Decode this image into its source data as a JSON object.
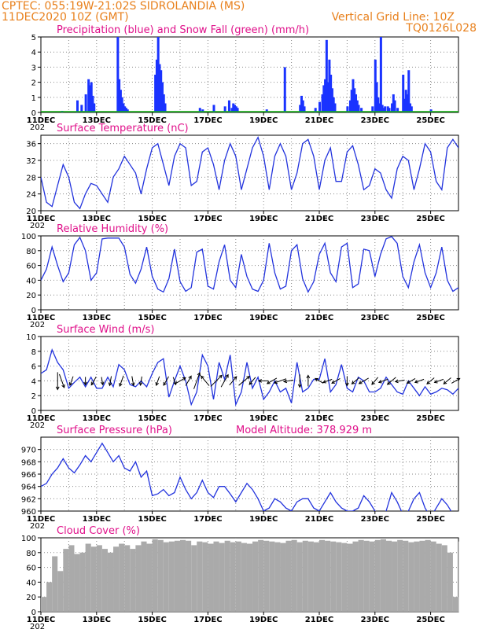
{
  "header": {
    "left_line1": "CPTEC:   055:19W-21:02S  SIDROLANDIA (MS)",
    "left_line2": "11DEC2020 10Z (GMT)",
    "right_line1": "Vertical Grid Line: 10Z",
    "right_line2": "TQ0126L028"
  },
  "x_axis": {
    "ticks": [
      "11DEC",
      "13DEC",
      "15DEC",
      "17DEC",
      "19DEC",
      "21DEC",
      "23DEC",
      "25DEC"
    ],
    "tick_days": [
      0,
      2,
      4,
      6,
      8,
      10,
      12,
      14
    ],
    "range_days": [
      0,
      15
    ],
    "year_stub": "202"
  },
  "colors": {
    "precip": "#1a33ff",
    "snow": "#10b010",
    "line": "#2233dd",
    "cloud": "#aaaaaa",
    "title": "#e0108a",
    "header": "#e8801c",
    "grid": "#888888"
  },
  "chart_data": [
    {
      "id": "precip",
      "type": "bar",
      "title": "Precipitation (blue) and Snow Fall (green) (mm/h)",
      "ylim": [
        0,
        5
      ],
      "yticks": [
        "0",
        "1",
        "2",
        "3",
        "4",
        "5"
      ],
      "grid": true,
      "series": [
        {
          "name": "Precipitation",
          "x": [
            0.75,
            1.3,
            1.45,
            1.6,
            1.7,
            1.75,
            1.8,
            1.85,
            1.9,
            2.75,
            2.8,
            2.85,
            2.9,
            2.95,
            3.0,
            3.05,
            3.1,
            4.1,
            4.15,
            4.2,
            4.25,
            4.3,
            4.35,
            4.4,
            4.45,
            5.7,
            5.8,
            6.2,
            6.6,
            6.75,
            6.85,
            6.9,
            6.95,
            7.0,
            7.05,
            8.1,
            8.75,
            9.3,
            9.35,
            9.4,
            9.45,
            9.85,
            10.0,
            10.1,
            10.15,
            10.2,
            10.25,
            10.3,
            10.35,
            10.4,
            10.45,
            10.5,
            10.55,
            11.0,
            11.1,
            11.15,
            11.2,
            11.25,
            11.3,
            11.35,
            11.4,
            11.5,
            11.9,
            12.0,
            12.05,
            12.1,
            12.15,
            12.2,
            12.25,
            12.3,
            12.35,
            12.45,
            12.5,
            12.6,
            12.65,
            12.7,
            12.8,
            13.0,
            13.05,
            13.1,
            13.15,
            13.2,
            13.25,
            13.3,
            14.0
          ],
          "values": [
            0.1,
            0.8,
            0.5,
            1.2,
            2.2,
            1.8,
            2.0,
            1.1,
            0.6,
            5.0,
            2.2,
            1.5,
            1.0,
            0.6,
            0.4,
            0.3,
            0.2,
            2.5,
            3.5,
            5.0,
            3.2,
            2.8,
            2.0,
            1.2,
            0.6,
            0.3,
            0.2,
            0.5,
            0.4,
            0.8,
            0.3,
            0.6,
            0.5,
            0.4,
            0.3,
            0.2,
            3.0,
            0.5,
            1.1,
            0.8,
            0.4,
            0.3,
            0.7,
            1.2,
            1.8,
            2.2,
            4.8,
            2.0,
            3.5,
            2.5,
            1.6,
            1.0,
            0.6,
            0.4,
            0.8,
            1.5,
            2.2,
            1.6,
            1.2,
            0.8,
            0.5,
            0.3,
            0.4,
            3.5,
            2.0,
            1.0,
            0.6,
            5.0,
            0.5,
            0.3,
            0.4,
            0.4,
            0.3,
            0.6,
            1.2,
            0.8,
            0.3,
            2.5,
            0.9,
            1.5,
            1.2,
            2.8,
            0.6,
            0.4,
            0.2
          ]
        },
        {
          "name": "Snow Fall",
          "x": [
            0,
            15
          ],
          "values": [
            0,
            0
          ]
        }
      ]
    },
    {
      "id": "temperature",
      "type": "line",
      "title": "Surface Temperature (nC)",
      "ylim": [
        20,
        38
      ],
      "yticks": [
        "20",
        "24",
        "28",
        "32",
        "36"
      ],
      "ytick_values": [
        20,
        24,
        28,
        32,
        36
      ],
      "grid": true,
      "x": [
        0,
        0.2,
        0.4,
        0.6,
        0.8,
        1.0,
        1.2,
        1.4,
        1.6,
        1.8,
        2.0,
        2.2,
        2.4,
        2.6,
        2.8,
        3.0,
        3.2,
        3.4,
        3.6,
        3.8,
        4.0,
        4.2,
        4.4,
        4.6,
        4.8,
        5.0,
        5.2,
        5.4,
        5.6,
        5.8,
        6.0,
        6.2,
        6.4,
        6.6,
        6.8,
        7.0,
        7.2,
        7.4,
        7.6,
        7.8,
        8.0,
        8.2,
        8.4,
        8.6,
        8.8,
        9.0,
        9.2,
        9.4,
        9.6,
        9.8,
        10.0,
        10.2,
        10.4,
        10.6,
        10.8,
        11.0,
        11.2,
        11.4,
        11.6,
        11.8,
        12.0,
        12.2,
        12.4,
        12.6,
        12.8,
        13.0,
        13.2,
        13.4,
        13.6,
        13.8,
        14.0,
        14.2,
        14.4,
        14.6,
        14.8,
        15.0
      ],
      "values": [
        28,
        22,
        21,
        26,
        31,
        28,
        22,
        20.5,
        24,
        26.5,
        26,
        24,
        22,
        28,
        30,
        33,
        31,
        29,
        24,
        30,
        35,
        36,
        31,
        26,
        33,
        36,
        35,
        26,
        27,
        34,
        35,
        31,
        25,
        32,
        36,
        33,
        25,
        30,
        35,
        37.5,
        33,
        25,
        33,
        36,
        33,
        25,
        29,
        36,
        37,
        33,
        25,
        32,
        35,
        27,
        27,
        34,
        35.5,
        31,
        25,
        26,
        30,
        29,
        25,
        23,
        30,
        33,
        32,
        25,
        30,
        36,
        34,
        27,
        25,
        35,
        37,
        35
      ]
    },
    {
      "id": "humidity",
      "type": "line",
      "title": "Relative Humidity (%)",
      "ylim": [
        0,
        100
      ],
      "yticks": [
        "0",
        "20",
        "40",
        "60",
        "80",
        "100"
      ],
      "ytick_values": [
        0,
        20,
        40,
        60,
        80,
        100
      ],
      "grid": true,
      "x": [
        0,
        0.2,
        0.4,
        0.6,
        0.8,
        1.0,
        1.2,
        1.4,
        1.6,
        1.8,
        2.0,
        2.2,
        2.4,
        2.6,
        2.8,
        3.0,
        3.2,
        3.4,
        3.6,
        3.8,
        4.0,
        4.2,
        4.4,
        4.6,
        4.8,
        5.0,
        5.2,
        5.4,
        5.6,
        5.8,
        6.0,
        6.2,
        6.4,
        6.6,
        6.8,
        7.0,
        7.2,
        7.4,
        7.6,
        7.8,
        8.0,
        8.2,
        8.4,
        8.6,
        8.8,
        9.0,
        9.2,
        9.4,
        9.6,
        9.8,
        10.0,
        10.2,
        10.4,
        10.6,
        10.8,
        11.0,
        11.2,
        11.4,
        11.6,
        11.8,
        12.0,
        12.2,
        12.4,
        12.6,
        12.8,
        13.0,
        13.2,
        13.4,
        13.6,
        13.8,
        14.0,
        14.2,
        14.4,
        14.6,
        14.8,
        15.0
      ],
      "values": [
        40,
        55,
        85,
        60,
        38,
        50,
        88,
        98,
        80,
        40,
        50,
        96,
        97,
        97,
        97,
        85,
        48,
        36,
        55,
        85,
        45,
        28,
        24,
        42,
        82,
        38,
        25,
        30,
        78,
        82,
        32,
        28,
        65,
        88,
        40,
        30,
        75,
        45,
        28,
        25,
        40,
        90,
        50,
        28,
        32,
        80,
        88,
        42,
        24,
        38,
        75,
        90,
        50,
        38,
        85,
        90,
        30,
        35,
        82,
        80,
        45,
        75,
        96,
        99,
        90,
        45,
        30,
        65,
        88,
        50,
        30,
        50,
        85,
        40,
        25,
        30
      ]
    },
    {
      "id": "wind",
      "type": "line",
      "title": "Surface Wind (m/s)",
      "ylim": [
        0,
        10
      ],
      "yticks": [
        "0",
        "2",
        "4",
        "6",
        "8",
        "10"
      ],
      "ytick_values": [
        0,
        2,
        4,
        6,
        8,
        10
      ],
      "grid": true,
      "x": [
        0,
        0.2,
        0.4,
        0.6,
        0.8,
        1.0,
        1.2,
        1.4,
        1.6,
        1.8,
        2.0,
        2.2,
        2.4,
        2.6,
        2.8,
        3.0,
        3.2,
        3.4,
        3.6,
        3.8,
        4.0,
        4.2,
        4.4,
        4.6,
        4.8,
        5.0,
        5.2,
        5.4,
        5.6,
        5.8,
        6.0,
        6.2,
        6.4,
        6.6,
        6.8,
        7.0,
        7.2,
        7.4,
        7.6,
        7.8,
        8.0,
        8.2,
        8.4,
        8.6,
        8.8,
        9.0,
        9.2,
        9.4,
        9.6,
        9.8,
        10.0,
        10.2,
        10.4,
        10.6,
        10.8,
        11.0,
        11.2,
        11.4,
        11.6,
        11.8,
        12.0,
        12.2,
        12.4,
        12.6,
        12.8,
        13.0,
        13.2,
        13.4,
        13.6,
        13.8,
        14.0,
        14.2,
        14.4,
        14.6,
        14.8,
        15.0
      ],
      "values": [
        5,
        5.5,
        8.2,
        6.5,
        5.5,
        3.0,
        3.8,
        4.5,
        3.2,
        4.5,
        3.0,
        3.0,
        4.5,
        3.2,
        6.2,
        5.5,
        3.5,
        3.2,
        4.0,
        3.2,
        5.0,
        6.5,
        7.0,
        1.8,
        4.0,
        6.0,
        4.0,
        0.8,
        2.5,
        7.5,
        6.0,
        1.5,
        6.5,
        4.2,
        7.5,
        0.8,
        2.5,
        6.5,
        3.0,
        4.5,
        1.5,
        2.5,
        4.0,
        2.5,
        3.0,
        1.0,
        6.5,
        2.5,
        3.0,
        4.2,
        4.2,
        7.0,
        2.5,
        3.5,
        6.2,
        3.0,
        2.5,
        4.5,
        4.0,
        2.5,
        2.5,
        3.0,
        4.5,
        3.5,
        2.5,
        2.2,
        4.0,
        3.0,
        2.0,
        3.2,
        2.2,
        2.5,
        3.0,
        2.8,
        2.2,
        3.0
      ]
    },
    {
      "id": "pressure",
      "type": "line",
      "title": "Surface Pressure (hPa)",
      "annotation": "Model Altitude: 378.929  m",
      "ylim": [
        960,
        972
      ],
      "yticks": [
        "960",
        "962",
        "964",
        "966",
        "968",
        "970"
      ],
      "ytick_values": [
        960,
        962,
        964,
        966,
        968,
        970
      ],
      "grid": true,
      "x": [
        0,
        0.2,
        0.4,
        0.6,
        0.8,
        1.0,
        1.2,
        1.4,
        1.6,
        1.8,
        2.0,
        2.2,
        2.4,
        2.6,
        2.8,
        3.0,
        3.2,
        3.4,
        3.6,
        3.8,
        4.0,
        4.2,
        4.4,
        4.6,
        4.8,
        5.0,
        5.2,
        5.4,
        5.6,
        5.8,
        6.0,
        6.2,
        6.4,
        6.6,
        6.8,
        7.0,
        7.2,
        7.4,
        7.6,
        7.8,
        8.0,
        8.2,
        8.4,
        8.6,
        8.8,
        9.0,
        9.2,
        9.4,
        9.6,
        9.8,
        10.0,
        10.2,
        10.4,
        10.6,
        10.8,
        11.0,
        11.2,
        11.4,
        11.6,
        11.8,
        12.0,
        12.2,
        12.4,
        12.6,
        12.8,
        13.0,
        13.2,
        13.4,
        13.6,
        13.8,
        14.0,
        14.2,
        14.4,
        14.6,
        14.8,
        15.0
      ],
      "values": [
        964,
        964.5,
        966,
        967,
        968.5,
        967,
        966.2,
        967.5,
        969,
        968,
        969.5,
        971,
        969.5,
        968,
        969,
        967,
        966.5,
        968,
        965.5,
        966.5,
        962.5,
        962.8,
        963.5,
        962.5,
        963,
        965.5,
        963.5,
        962,
        963,
        965,
        963,
        962.2,
        964,
        964,
        962.8,
        961.5,
        963,
        964.5,
        963.5,
        962,
        960,
        960.5,
        962,
        961.5,
        960.5,
        960,
        961.5,
        962,
        962,
        960.5,
        960,
        961.5,
        963,
        961.5,
        960.5,
        960,
        960,
        960.5,
        962.5,
        961.5,
        960,
        959.5,
        960,
        963,
        961.5,
        959.5,
        960,
        962,
        963,
        960.5,
        959,
        960.5,
        962,
        961,
        959.5,
        959
      ]
    },
    {
      "id": "cloud",
      "type": "area",
      "title": "Cloud Cover (%)",
      "ylim": [
        0,
        100
      ],
      "yticks": [
        "0",
        "20",
        "40",
        "60",
        "80",
        "100"
      ],
      "ytick_values": [
        0,
        20,
        40,
        60,
        80,
        100
      ],
      "grid": true,
      "x": [
        0,
        0.2,
        0.4,
        0.6,
        0.8,
        1.0,
        1.2,
        1.4,
        1.6,
        1.8,
        2.0,
        2.2,
        2.4,
        2.6,
        2.8,
        3.0,
        3.2,
        3.4,
        3.6,
        3.8,
        4.0,
        4.2,
        4.4,
        4.6,
        4.8,
        5.0,
        5.2,
        5.4,
        5.6,
        5.8,
        6.0,
        6.2,
        6.4,
        6.6,
        6.8,
        7.0,
        7.2,
        7.4,
        7.6,
        7.8,
        8.0,
        8.2,
        8.4,
        8.6,
        8.8,
        9.0,
        9.2,
        9.4,
        9.6,
        9.8,
        10.0,
        10.2,
        10.4,
        10.6,
        10.8,
        11.0,
        11.2,
        11.4,
        11.6,
        11.8,
        12.0,
        12.2,
        12.4,
        12.6,
        12.8,
        13.0,
        13.2,
        13.4,
        13.6,
        13.8,
        14.0,
        14.2,
        14.4,
        14.6,
        14.8,
        15.0
      ],
      "values": [
        20,
        40,
        75,
        55,
        85,
        90,
        78,
        80,
        92,
        88,
        90,
        85,
        80,
        88,
        92,
        90,
        85,
        90,
        95,
        92,
        98,
        97,
        94,
        95,
        96,
        97,
        96,
        90,
        95,
        94,
        92,
        95,
        93,
        96,
        94,
        95,
        93,
        92,
        95,
        97,
        96,
        95,
        94,
        93,
        96,
        97,
        94,
        96,
        95,
        94,
        97,
        96,
        95,
        94,
        93,
        92,
        95,
        97,
        96,
        95,
        97,
        98,
        96,
        95,
        97,
        96,
        94,
        95,
        96,
        97,
        95,
        92,
        90,
        80,
        20,
        95
      ]
    }
  ],
  "wind_arrows": {
    "x": [
      0.6,
      0.75,
      1.1,
      1.6,
      1.9,
      2.2,
      2.5,
      2.9,
      3.3,
      3.6,
      4.2,
      4.5,
      4.8,
      5.0,
      5.3,
      5.6,
      5.9,
      6.3,
      6.6,
      6.9,
      7.3,
      7.6,
      8.0,
      8.3,
      8.6,
      8.9,
      9.3,
      9.6,
      10.0,
      10.3,
      10.6,
      11.0,
      11.3,
      11.6,
      12.0,
      12.3,
      12.6,
      12.9,
      13.3,
      13.6,
      14.0,
      14.3,
      14.6,
      14.9
    ],
    "speed": [
      4.5,
      3.5,
      2.0,
      1.5,
      2.0,
      1.5,
      2.0,
      2.5,
      2.0,
      1.8,
      2.0,
      2.2,
      1.5,
      3.0,
      2.5,
      4.5,
      3.0,
      4.0,
      3.5,
      2.5,
      3.5,
      2.0,
      2.0,
      2.5,
      3.0,
      2.0,
      3.0,
      2.5,
      2.0,
      2.0,
      2.0,
      2.0,
      2.0,
      2.5,
      2.0,
      2.0,
      2.5,
      2.0,
      2.0,
      2.0,
      2.0,
      2.0,
      2.0,
      2.0
    ],
    "dir_deg": [
      180,
      160,
      200,
      180,
      210,
      170,
      190,
      200,
      170,
      190,
      200,
      210,
      160,
      60,
      30,
      20,
      320,
      45,
      30,
      40,
      50,
      220,
      270,
      240,
      250,
      260,
      180,
      0,
      300,
      250,
      240,
      180,
      230,
      240,
      220,
      250,
      230,
      260,
      240,
      250,
      230,
      250,
      230,
      60
    ]
  }
}
